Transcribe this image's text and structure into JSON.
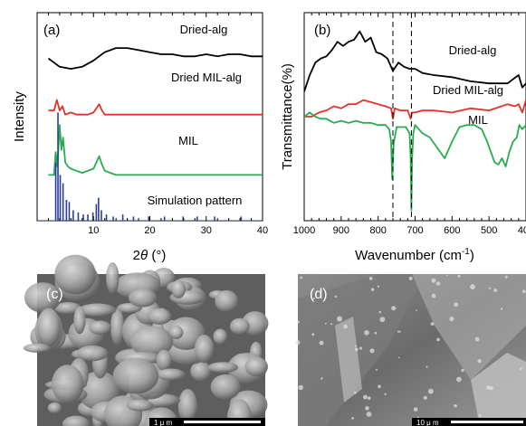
{
  "chart_data": [
    {
      "panel": "(a)",
      "type": "line",
      "xlabel": "2θ (°)",
      "ylabel": "Intensity",
      "xlim": [
        0,
        40
      ],
      "xticks": [
        "10",
        "20",
        "30",
        "40"
      ],
      "grid": false,
      "series_labels": [
        "Dried-alg",
        "Dried MIL-alg",
        "MIL",
        "Simulation pattern"
      ],
      "series": [
        {
          "name": "Dried-alg",
          "color": "#000000",
          "x": [
            2,
            4,
            6,
            8,
            10,
            12,
            14,
            16,
            18,
            20,
            22,
            24,
            26,
            28,
            30,
            32,
            34,
            36,
            38,
            40
          ],
          "y": [
            0.78,
            0.74,
            0.73,
            0.74,
            0.77,
            0.81,
            0.83,
            0.83,
            0.82,
            0.81,
            0.8,
            0.8,
            0.79,
            0.79,
            0.8,
            0.79,
            0.8,
            0.8,
            0.79,
            0.79
          ]
        },
        {
          "name": "Dried MIL-alg",
          "color": "#e8302a",
          "x": [
            2,
            3,
            3.5,
            4,
            4.5,
            5,
            6,
            7,
            8,
            9,
            10,
            10.5,
            11,
            11.5,
            12,
            14,
            16,
            20,
            25,
            30,
            35,
            40
          ],
          "y": [
            0.53,
            0.53,
            0.58,
            0.53,
            0.55,
            0.51,
            0.52,
            0.51,
            0.51,
            0.51,
            0.52,
            0.54,
            0.56,
            0.53,
            0.51,
            0.51,
            0.51,
            0.51,
            0.51,
            0.51,
            0.51,
            0.51
          ]
        },
        {
          "name": "MIL",
          "color": "#27ad4f",
          "x": [
            2,
            3,
            3.3,
            3.6,
            4,
            4.3,
            4.6,
            5,
            5.5,
            6,
            7,
            8,
            9,
            10,
            10.5,
            11,
            11.5,
            12,
            13,
            14,
            16,
            18,
            20,
            25,
            30,
            35,
            40
          ],
          "y": [
            0.22,
            0.22,
            0.33,
            0.26,
            0.46,
            0.34,
            0.4,
            0.28,
            0.26,
            0.25,
            0.24,
            0.23,
            0.24,
            0.25,
            0.28,
            0.31,
            0.27,
            0.24,
            0.23,
            0.22,
            0.22,
            0.22,
            0.22,
            0.22,
            0.22,
            0.22,
            0.22
          ]
        }
      ],
      "simulation_pattern": {
        "name": "Simulation pattern",
        "color": "#2b3d9c",
        "peaks_x": [
          3.3,
          3.7,
          4.1,
          4.6,
          5.2,
          5.7,
          6.4,
          7.3,
          8.2,
          9.0,
          9.9,
          10.5,
          10.9,
          11.4,
          12.3,
          13.5,
          15.2,
          17.1,
          19.8,
          22.6,
          25.9,
          28.4,
          31.5,
          36.2
        ],
        "peaks_y": [
          0.28,
          0.52,
          0.22,
          0.18,
          0.1,
          0.09,
          0.05,
          0.04,
          0.03,
          0.03,
          0.04,
          0.08,
          0.11,
          0.05,
          0.03,
          0.02,
          0.03,
          0.02,
          0.02,
          0.02,
          0.02,
          0.02,
          0.02,
          0.02
        ]
      }
    },
    {
      "panel": "(b)",
      "type": "line",
      "xlabel": "Wavenumber (cm⁻¹)",
      "ylabel": "Transmittance(%)",
      "xlim": [
        1000,
        400
      ],
      "x_inverted": true,
      "xticks": [
        "1000",
        "900",
        "800",
        "700",
        "600",
        "500",
        "400"
      ],
      "dashed_lines_x": [
        760,
        710
      ],
      "grid": false,
      "series_labels": [
        "Dried-alg",
        "Dried MIL-alg",
        "MIL"
      ],
      "series": [
        {
          "name": "Dried-alg",
          "color": "#000000",
          "x": [
            1000,
            985,
            970,
            955,
            940,
            925,
            910,
            895,
            880,
            865,
            850,
            835,
            820,
            805,
            790,
            775,
            760,
            745,
            730,
            715,
            700,
            680,
            650,
            600,
            550,
            500,
            450,
            420,
            410,
            400
          ],
          "y": [
            0.62,
            0.7,
            0.76,
            0.78,
            0.79,
            0.82,
            0.86,
            0.84,
            0.86,
            0.87,
            0.91,
            0.86,
            0.88,
            0.81,
            0.8,
            0.78,
            0.72,
            0.76,
            0.74,
            0.73,
            0.73,
            0.71,
            0.7,
            0.69,
            0.67,
            0.66,
            0.66,
            0.7,
            0.64,
            0.66
          ]
        },
        {
          "name": "Dried MIL-alg",
          "color": "#e8302a",
          "x": [
            1000,
            980,
            960,
            940,
            920,
            900,
            880,
            860,
            840,
            820,
            800,
            780,
            765,
            760,
            755,
            740,
            720,
            712,
            708,
            700,
            680,
            650,
            600,
            550,
            500,
            450,
            430,
            420,
            410,
            400
          ],
          "y": [
            0.5,
            0.5,
            0.52,
            0.53,
            0.55,
            0.54,
            0.56,
            0.56,
            0.58,
            0.57,
            0.56,
            0.55,
            0.54,
            0.49,
            0.54,
            0.53,
            0.53,
            0.49,
            0.52,
            0.52,
            0.53,
            0.53,
            0.52,
            0.54,
            0.53,
            0.56,
            0.55,
            0.56,
            0.52,
            0.58
          ]
        },
        {
          "name": "MIL",
          "color": "#27ad4f",
          "x": [
            1000,
            985,
            970,
            955,
            940,
            920,
            900,
            880,
            860,
            840,
            820,
            800,
            780,
            770,
            765,
            762,
            758,
            750,
            740,
            725,
            715,
            712,
            710,
            708,
            705,
            700,
            690,
            680,
            660,
            640,
            620,
            600,
            580,
            560,
            540,
            520,
            505,
            495,
            485,
            475,
            465,
            455,
            445,
            435,
            425,
            418,
            410,
            400
          ],
          "y": [
            0.5,
            0.52,
            0.5,
            0.49,
            0.49,
            0.47,
            0.48,
            0.47,
            0.48,
            0.47,
            0.47,
            0.46,
            0.46,
            0.44,
            0.38,
            0.2,
            0.37,
            0.45,
            0.45,
            0.45,
            0.42,
            0.3,
            0.05,
            0.3,
            0.42,
            0.46,
            0.44,
            0.42,
            0.4,
            0.35,
            0.3,
            0.38,
            0.45,
            0.46,
            0.46,
            0.44,
            0.38,
            0.33,
            0.28,
            0.27,
            0.3,
            0.26,
            0.33,
            0.38,
            0.4,
            0.46,
            0.44,
            0.46
          ]
        }
      ]
    }
  ],
  "images": {
    "c": {
      "label": "(c)",
      "scale_bar": "1 μ m"
    },
    "d": {
      "label": "(d)",
      "scale_bar": "10 μ m"
    }
  }
}
